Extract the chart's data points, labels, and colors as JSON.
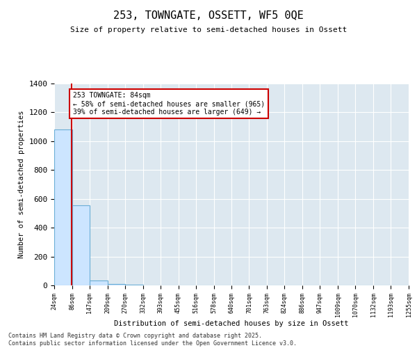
{
  "title_line1": "253, TOWNGATE, OSSETT, WF5 0QE",
  "title_line2": "Size of property relative to semi-detached houses in Ossett",
  "xlabel": "Distribution of semi-detached houses by size in Ossett",
  "ylabel": "Number of semi-detached properties",
  "bins": [
    24,
    86,
    147,
    209,
    270,
    332,
    393,
    455,
    516,
    578,
    640,
    701,
    763,
    824,
    886,
    947,
    1009,
    1070,
    1132,
    1193,
    1255
  ],
  "values": [
    1080,
    555,
    35,
    10,
    3,
    2,
    1,
    1,
    0,
    0,
    0,
    0,
    0,
    0,
    0,
    0,
    0,
    0,
    0,
    0
  ],
  "property_size": 84,
  "bar_facecolor": "#cce5ff",
  "bar_edgecolor": "#6aaed6",
  "vline_color": "#cc0000",
  "annotation_line1": "253 TOWNGATE: 84sqm",
  "annotation_line2": "← 58% of semi-detached houses are smaller (965)",
  "annotation_line3": "39% of semi-detached houses are larger (649) →",
  "annotation_box_color": "#cc0000",
  "ylim": [
    0,
    1400
  ],
  "yticks": [
    0,
    200,
    400,
    600,
    800,
    1000,
    1200,
    1400
  ],
  "background_color": "#dde8f0",
  "footer_line1": "Contains HM Land Registry data © Crown copyright and database right 2025.",
  "footer_line2": "Contains public sector information licensed under the Open Government Licence v3.0."
}
